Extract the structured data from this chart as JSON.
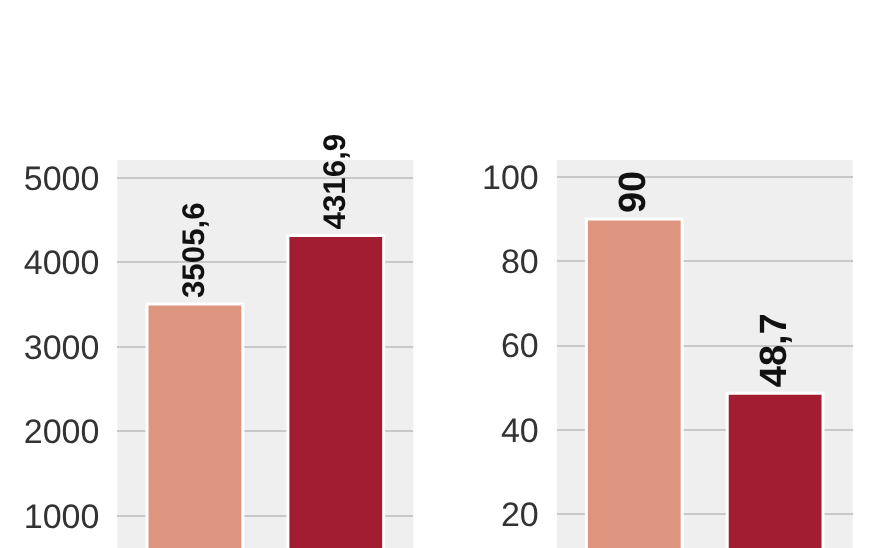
{
  "chart_data": [
    {
      "type": "bar",
      "categories": [
        null,
        null
      ],
      "values": [
        3505.6,
        4316.9
      ],
      "colors": [
        "#de9580",
        "#a21c32"
      ],
      "value_labels": [
        "3505,6",
        "4316,9"
      ],
      "ylim": [
        620,
        5210
      ],
      "yticks": [
        1000,
        2000,
        3000,
        4000,
        5000
      ],
      "grid": "y"
    },
    {
      "type": "bar",
      "categories": [
        null,
        null
      ],
      "values": [
        90,
        48.7
      ],
      "colors": [
        "#de9580",
        "#a21c32"
      ],
      "value_labels": [
        "90",
        "48,7"
      ],
      "ylim": [
        12,
        104
      ],
      "yticks": [
        20,
        40,
        60,
        80,
        100
      ],
      "grid": "y"
    }
  ]
}
